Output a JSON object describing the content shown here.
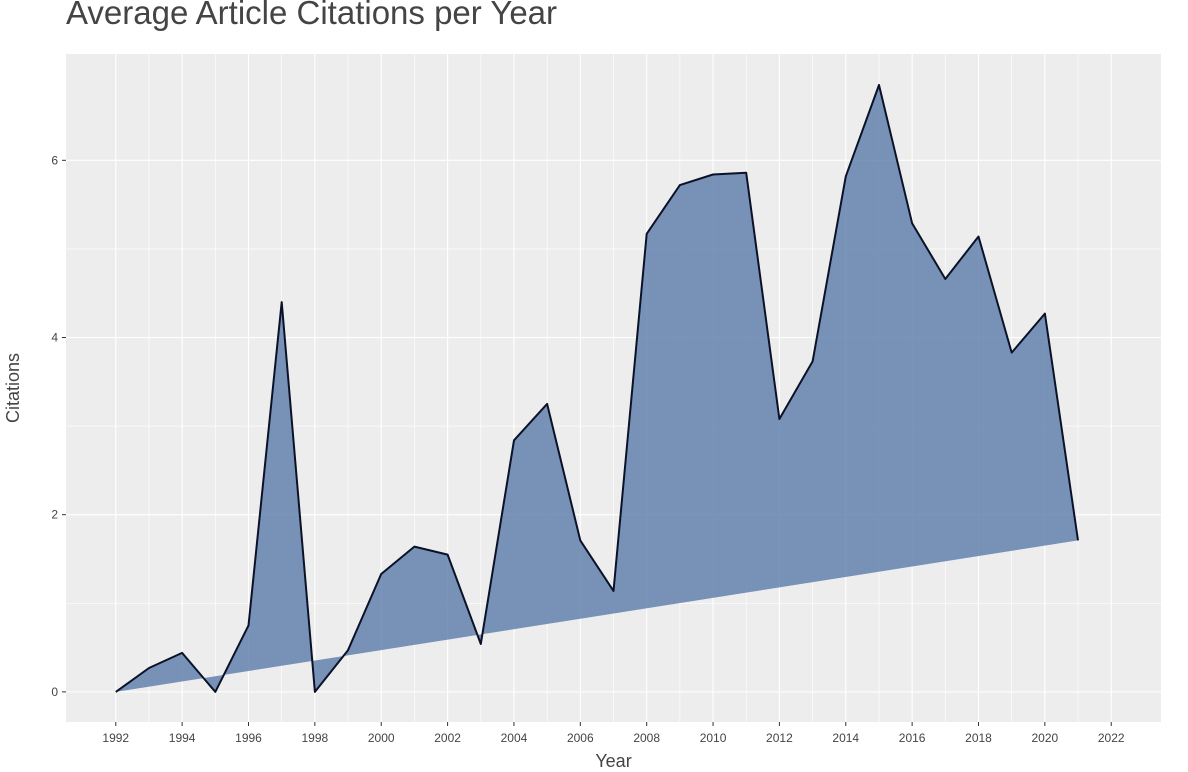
{
  "chart_data": {
    "type": "area",
    "title": "Average Article Citations per Year",
    "xlabel": "Year",
    "ylabel": "Citations",
    "x": [
      1992,
      1993,
      1994,
      1995,
      1996,
      1997,
      1998,
      1999,
      2000,
      2001,
      2002,
      2003,
      2004,
      2005,
      2006,
      2007,
      2008,
      2009,
      2010,
      2011,
      2012,
      2013,
      2014,
      2015,
      2016,
      2017,
      2018,
      2019,
      2020,
      2021
    ],
    "y": [
      0,
      0.27,
      0.44,
      0,
      0.75,
      4.4,
      0,
      0.47,
      1.33,
      1.64,
      1.55,
      0.54,
      2.84,
      3.25,
      1.71,
      1.14,
      5.17,
      5.72,
      5.84,
      5.86,
      3.08,
      3.73,
      5.82,
      6.85,
      5.29,
      4.66,
      5.14,
      3.83,
      4.27,
      1.71
    ],
    "xlim": [
      1990.5,
      2023.5
    ],
    "ylim": [
      -0.34,
      7.2
    ],
    "x_ticks": [
      "1992",
      "1994",
      "1996",
      "1998",
      "2000",
      "2002",
      "2004",
      "2006",
      "2008",
      "2010",
      "2012",
      "2014",
      "2016",
      "2018",
      "2020",
      "2022"
    ],
    "y_ticks": [
      "0",
      "2",
      "4",
      "6"
    ],
    "grid": true,
    "fill_color": "#5a79a9",
    "line_color": "#0b1227",
    "panel_color": "#ededed"
  }
}
